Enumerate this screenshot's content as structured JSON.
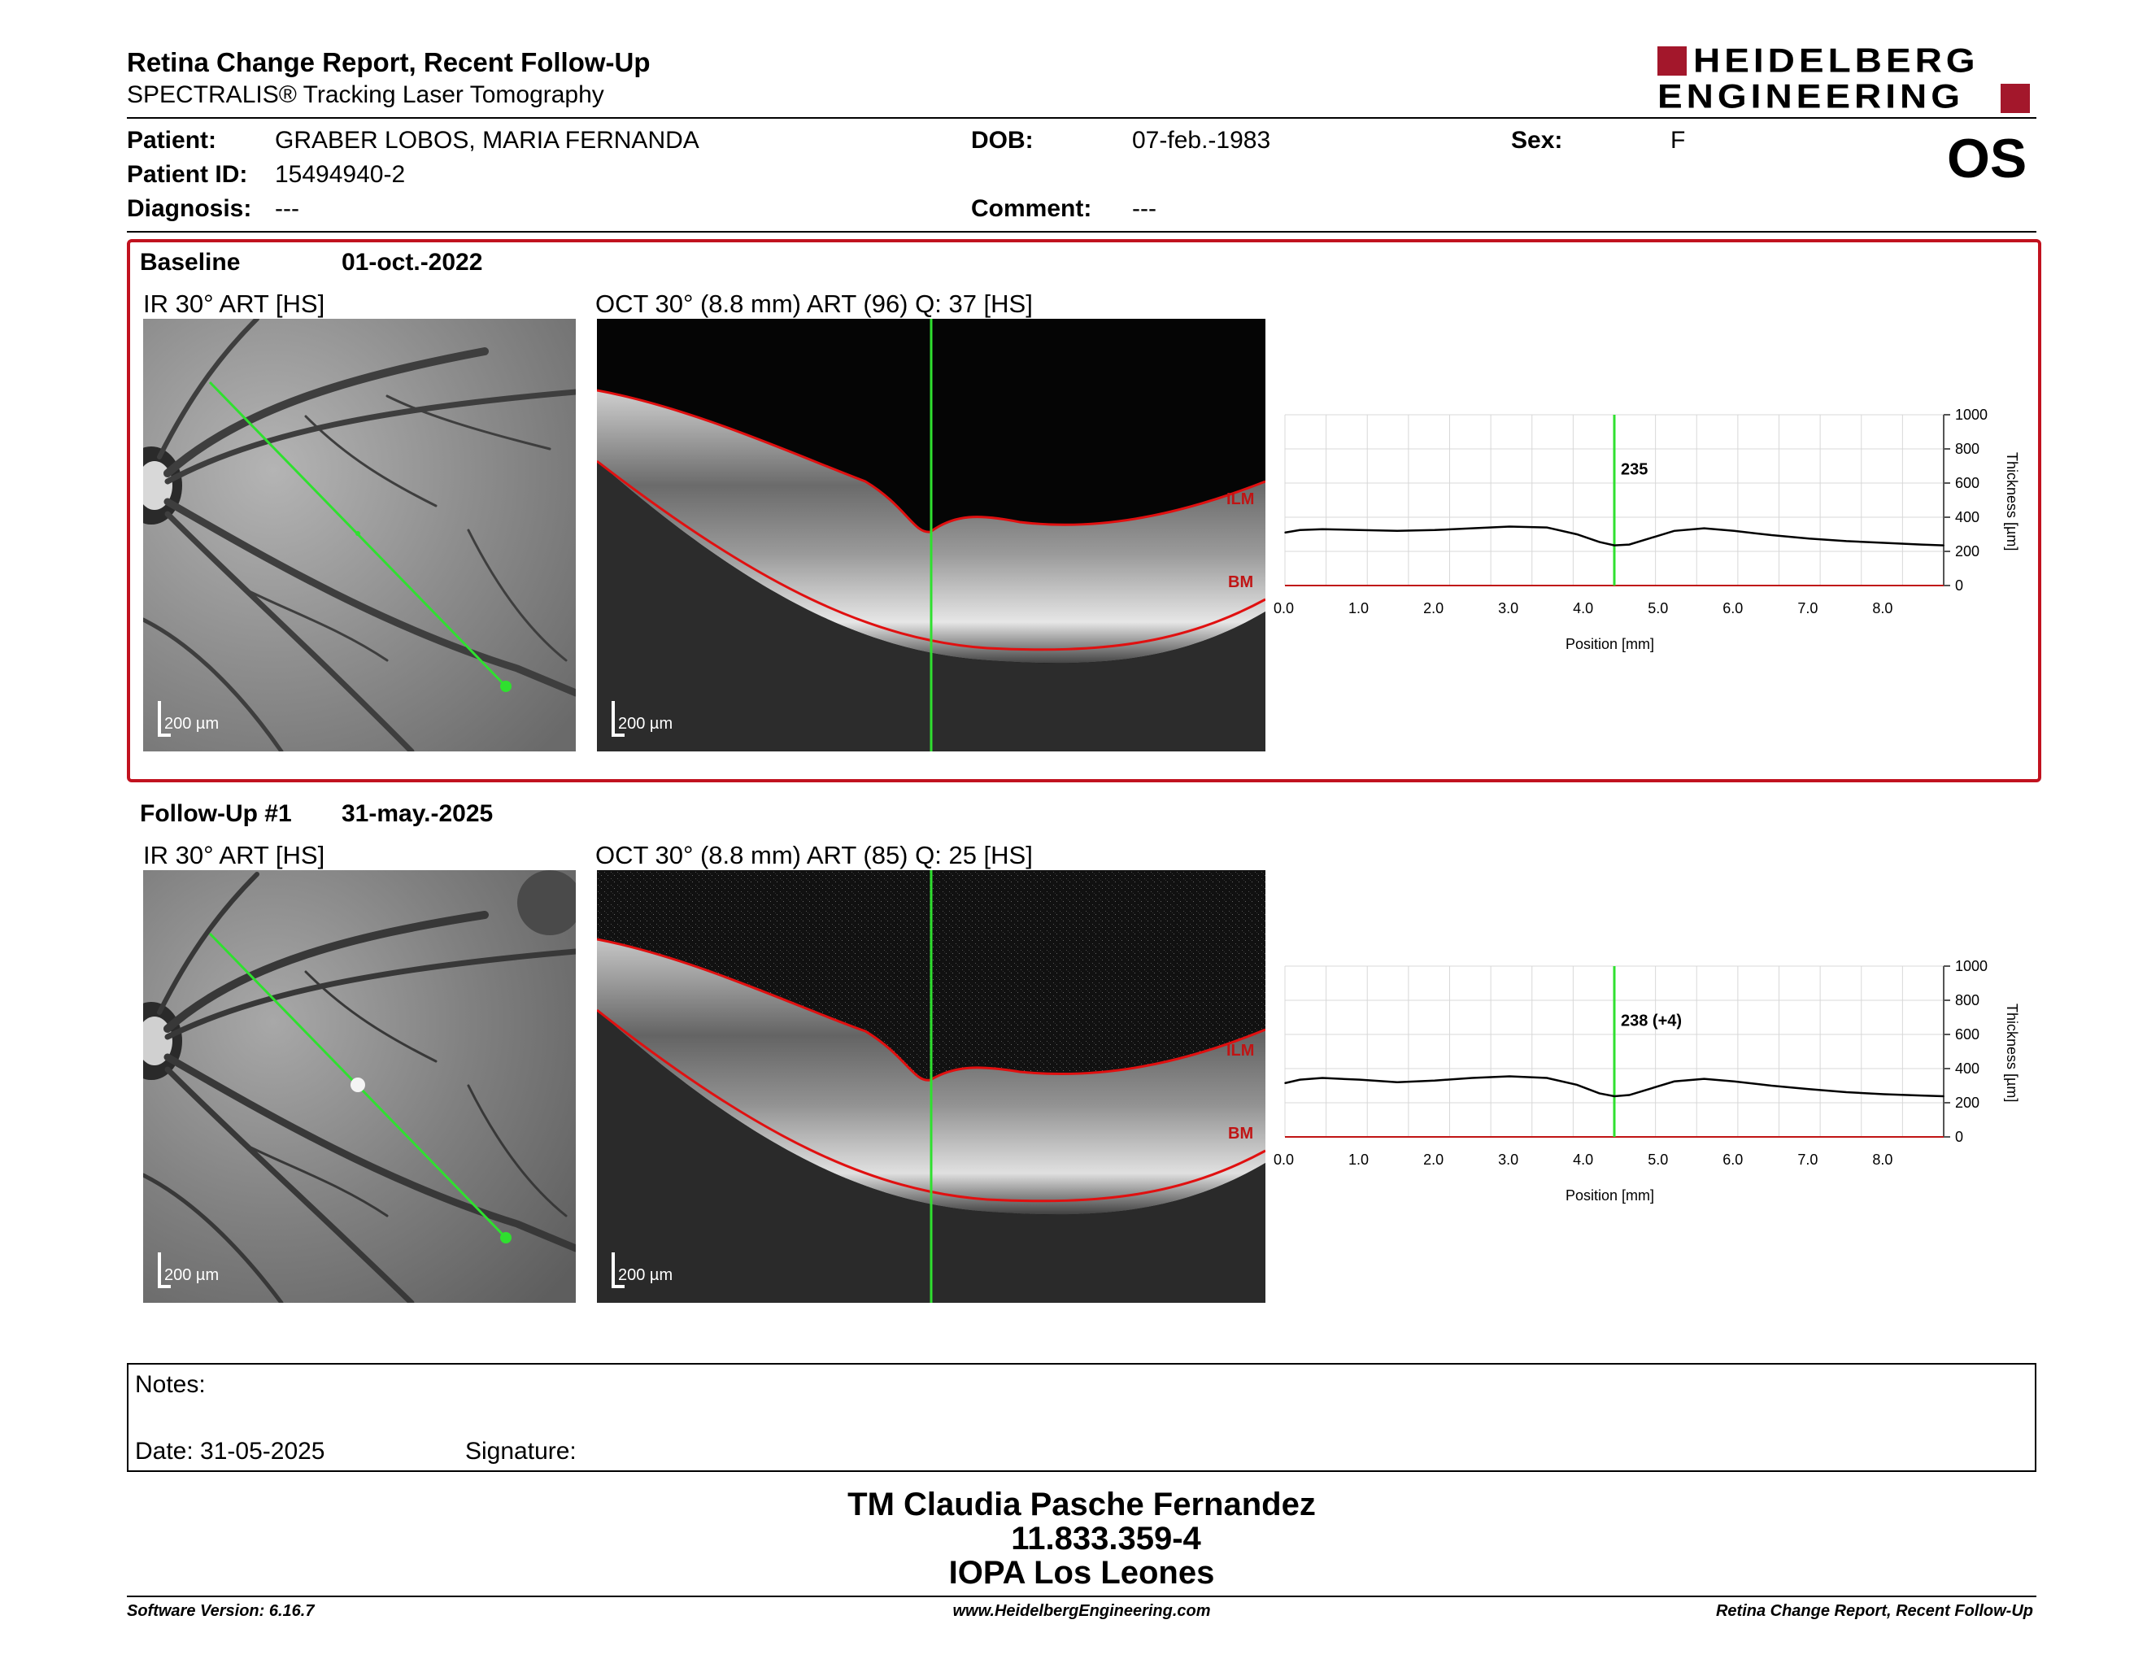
{
  "header": {
    "title": "Retina Change Report, Recent Follow-Up",
    "subtitle": "SPECTRALIS® Tracking Laser Tomography",
    "logo_line1": "HEIDELBERG",
    "logo_line2": "ENGINEERING",
    "eye": "OS"
  },
  "patient": {
    "patient_label": "Patient:",
    "patient_value": "GRABER LOBOS, MARIA FERNANDA",
    "id_label": "Patient ID:",
    "id_value": "15494940-2",
    "diagnosis_label": "Diagnosis:",
    "diagnosis_value": "---",
    "dob_label": "DOB:",
    "dob_value": "07-feb.-1983",
    "comment_label": "Comment:",
    "comment_value": "---",
    "sex_label": "Sex:",
    "sex_value": "F"
  },
  "exams": [
    {
      "label": "Baseline",
      "date": "01-oct.-2022",
      "ir_title": "IR 30° ART [HS]",
      "oct_title": "OCT 30° (8.8 mm) ART (96) Q: 37 [HS]",
      "ir_scale": "200 µm",
      "oct_scale": "200 µm",
      "ilm": "ILM",
      "bm": "BM"
    },
    {
      "label": "Follow-Up #1",
      "date": "31-may.-2025",
      "ir_title": "IR 30° ART [HS]",
      "oct_title": "OCT 30° (8.8 mm) ART (85) Q: 25 [HS]",
      "ir_scale": "200 µm",
      "oct_scale": "200 µm",
      "ilm": "ILM",
      "bm": "BM"
    }
  ],
  "chart_data": [
    {
      "type": "line",
      "xlabel": "Position [mm]",
      "ylabel": "Thickness [µm]",
      "xticks": [
        "0.0",
        "1.0",
        "2.0",
        "3.0",
        "4.0",
        "5.0",
        "6.0",
        "7.0",
        "8.0"
      ],
      "yticks": [
        "0",
        "200",
        "400",
        "600",
        "800",
        "1000"
      ],
      "xlim": [
        0,
        8.8
      ],
      "ylim": [
        0,
        1000
      ],
      "cursor_x": 4.4,
      "cursor_label": "235",
      "grid": true,
      "series": [
        {
          "x": [
            0,
            0.2,
            0.5,
            1.0,
            1.5,
            2.0,
            2.5,
            3.0,
            3.5,
            3.9,
            4.2,
            4.4,
            4.6,
            4.9,
            5.2,
            5.6,
            6.0,
            6.5,
            7.0,
            7.5,
            8.0,
            8.5,
            8.8
          ],
          "y": [
            310,
            325,
            330,
            325,
            320,
            325,
            335,
            345,
            340,
            300,
            255,
            235,
            240,
            280,
            320,
            335,
            320,
            295,
            275,
            260,
            250,
            240,
            235
          ]
        }
      ]
    },
    {
      "type": "line",
      "xlabel": "Position [mm]",
      "ylabel": "Thickness [µm]",
      "xticks": [
        "0.0",
        "1.0",
        "2.0",
        "3.0",
        "4.0",
        "5.0",
        "6.0",
        "7.0",
        "8.0"
      ],
      "yticks": [
        "0",
        "200",
        "400",
        "600",
        "800",
        "1000"
      ],
      "xlim": [
        0,
        8.8
      ],
      "ylim": [
        0,
        1000
      ],
      "cursor_x": 4.4,
      "cursor_label": "238 (+4)",
      "grid": true,
      "series": [
        {
          "x": [
            0,
            0.2,
            0.5,
            1.0,
            1.5,
            2.0,
            2.5,
            3.0,
            3.5,
            3.9,
            4.2,
            4.4,
            4.6,
            4.9,
            5.2,
            5.6,
            6.0,
            6.5,
            7.0,
            7.5,
            8.0,
            8.5,
            8.8
          ],
          "y": [
            315,
            335,
            345,
            335,
            320,
            330,
            345,
            355,
            345,
            305,
            255,
            238,
            245,
            285,
            325,
            340,
            325,
            300,
            280,
            262,
            250,
            242,
            238
          ]
        }
      ]
    }
  ],
  "notes": {
    "notes_label": "Notes:",
    "date_label": "Date: 31-05-2025",
    "signature_label": "Signature:"
  },
  "stamp": {
    "line1": "TM Claudia Pasche Fernandez",
    "line2": "11.833.359-4",
    "line3": "IOPA Los Leones"
  },
  "footer": {
    "version": "Software Version: 6.16.7",
    "url": "www.HeidelbergEngineering.com",
    "report": "Retina Change Report, Recent Follow-Up"
  }
}
